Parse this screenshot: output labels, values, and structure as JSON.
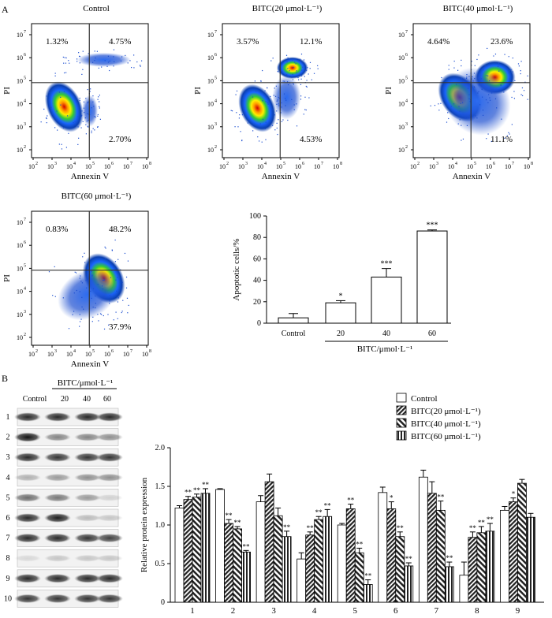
{
  "panel_A_label": "A",
  "panel_B_label": "B",
  "flow": {
    "ylabel": "PI",
    "xlabel": "Annexin V",
    "ticks": [
      "10",
      "10",
      "10",
      "10",
      "10",
      "10",
      "10"
    ],
    "tick_exp": [
      "2",
      "3",
      "4",
      "5",
      "6",
      "7",
      "8"
    ],
    "yticks": [
      "10",
      "10",
      "10",
      "10",
      "10",
      "10"
    ],
    "ytick_exp": [
      "2",
      "3",
      "4",
      "5",
      "6",
      "7"
    ],
    "plots": [
      {
        "title": "Control",
        "ul": "1.32%",
        "ur": "4.75%",
        "lr": "2.70%"
      },
      {
        "title": "BITC(20 μmol·L⁻¹)",
        "ul": "3.57%",
        "ur": "12.1%",
        "lr": "4.53%"
      },
      {
        "title": "BITC(40 μmol·L⁻¹)",
        "ul": "4.64%",
        "ur": "23.6%",
        "lr": "11.1%"
      },
      {
        "title": "BITC(60 μmol·L⁻¹)",
        "ul": "0.83%",
        "ur": "48.2%",
        "lr": "37.9%"
      }
    ]
  },
  "western": {
    "header": "BITC/μmol·L⁻¹",
    "columns": [
      "Control",
      "20",
      "40",
      "60"
    ],
    "rows": [
      "1",
      "2",
      "3",
      "4",
      "5",
      "6",
      "7",
      "8",
      "9",
      "10"
    ]
  },
  "chart_data": [
    {
      "type": "bar",
      "title": "",
      "ylabel": "Apoptotic cells/%",
      "xlabel": "BITC/μmol·L⁻¹",
      "categories": [
        "Control",
        "20",
        "40",
        "60"
      ],
      "values": [
        5,
        19,
        43,
        86
      ],
      "errors": [
        4,
        2,
        8,
        1
      ],
      "significance": [
        "",
        "*",
        "***",
        "***"
      ],
      "ylim": [
        0,
        100
      ],
      "yticks": [
        0,
        20,
        40,
        60,
        80,
        100
      ]
    },
    {
      "type": "bar",
      "ylabel": "Relative protein expression",
      "xlabel": "",
      "categories": [
        "1",
        "2",
        "3",
        "4",
        "5",
        "6",
        "7",
        "8",
        "9"
      ],
      "ylim": [
        0,
        2.0
      ],
      "yticks": [
        "0",
        "0.5",
        "1.0",
        "1.5",
        "2.0"
      ],
      "series": [
        {
          "name": "Control",
          "values": [
            1.22,
            1.46,
            1.3,
            0.56,
            1.0,
            1.42,
            1.62,
            0.35,
            1.19
          ],
          "errors": [
            0.03,
            0.01,
            0.08,
            0.08,
            0.02,
            0.07,
            0.09,
            0.17,
            0.05
          ],
          "sig": [
            "",
            "",
            "",
            "",
            "",
            "",
            "",
            "",
            ""
          ]
        },
        {
          "name": "BITC(20 μmol·L⁻¹)",
          "values": [
            1.33,
            1.02,
            1.56,
            0.87,
            1.21,
            1.21,
            1.41,
            0.84,
            1.3
          ],
          "errors": [
            0.04,
            0.05,
            0.1,
            0.04,
            0.06,
            0.09,
            0.15,
            0.07,
            0.05
          ],
          "sig": [
            "**",
            "**",
            "",
            "**",
            "**",
            "*",
            "",
            "**",
            "*"
          ]
        },
        {
          "name": "BITC(40 μmol·L⁻¹)",
          "values": [
            1.36,
            0.95,
            1.12,
            1.07,
            0.64,
            0.85,
            1.19,
            0.9,
            1.54
          ],
          "errors": [
            0.04,
            0.03,
            0.1,
            0.04,
            0.06,
            0.06,
            0.12,
            0.08,
            0.05
          ],
          "sig": [
            "**",
            "**",
            "",
            "**",
            "**",
            "**",
            "**",
            "**",
            ""
          ]
        },
        {
          "name": "BITC(60 μmol·L⁻¹)",
          "values": [
            1.41,
            0.65,
            0.85,
            1.11,
            0.23,
            0.47,
            0.46,
            0.92,
            1.1
          ],
          "errors": [
            0.06,
            0.02,
            0.07,
            0.09,
            0.06,
            0.04,
            0.06,
            0.1,
            0.05
          ],
          "sig": [
            "**",
            "**",
            "**",
            "**",
            "**",
            "**",
            "**",
            "**",
            ""
          ]
        }
      ]
    }
  ]
}
